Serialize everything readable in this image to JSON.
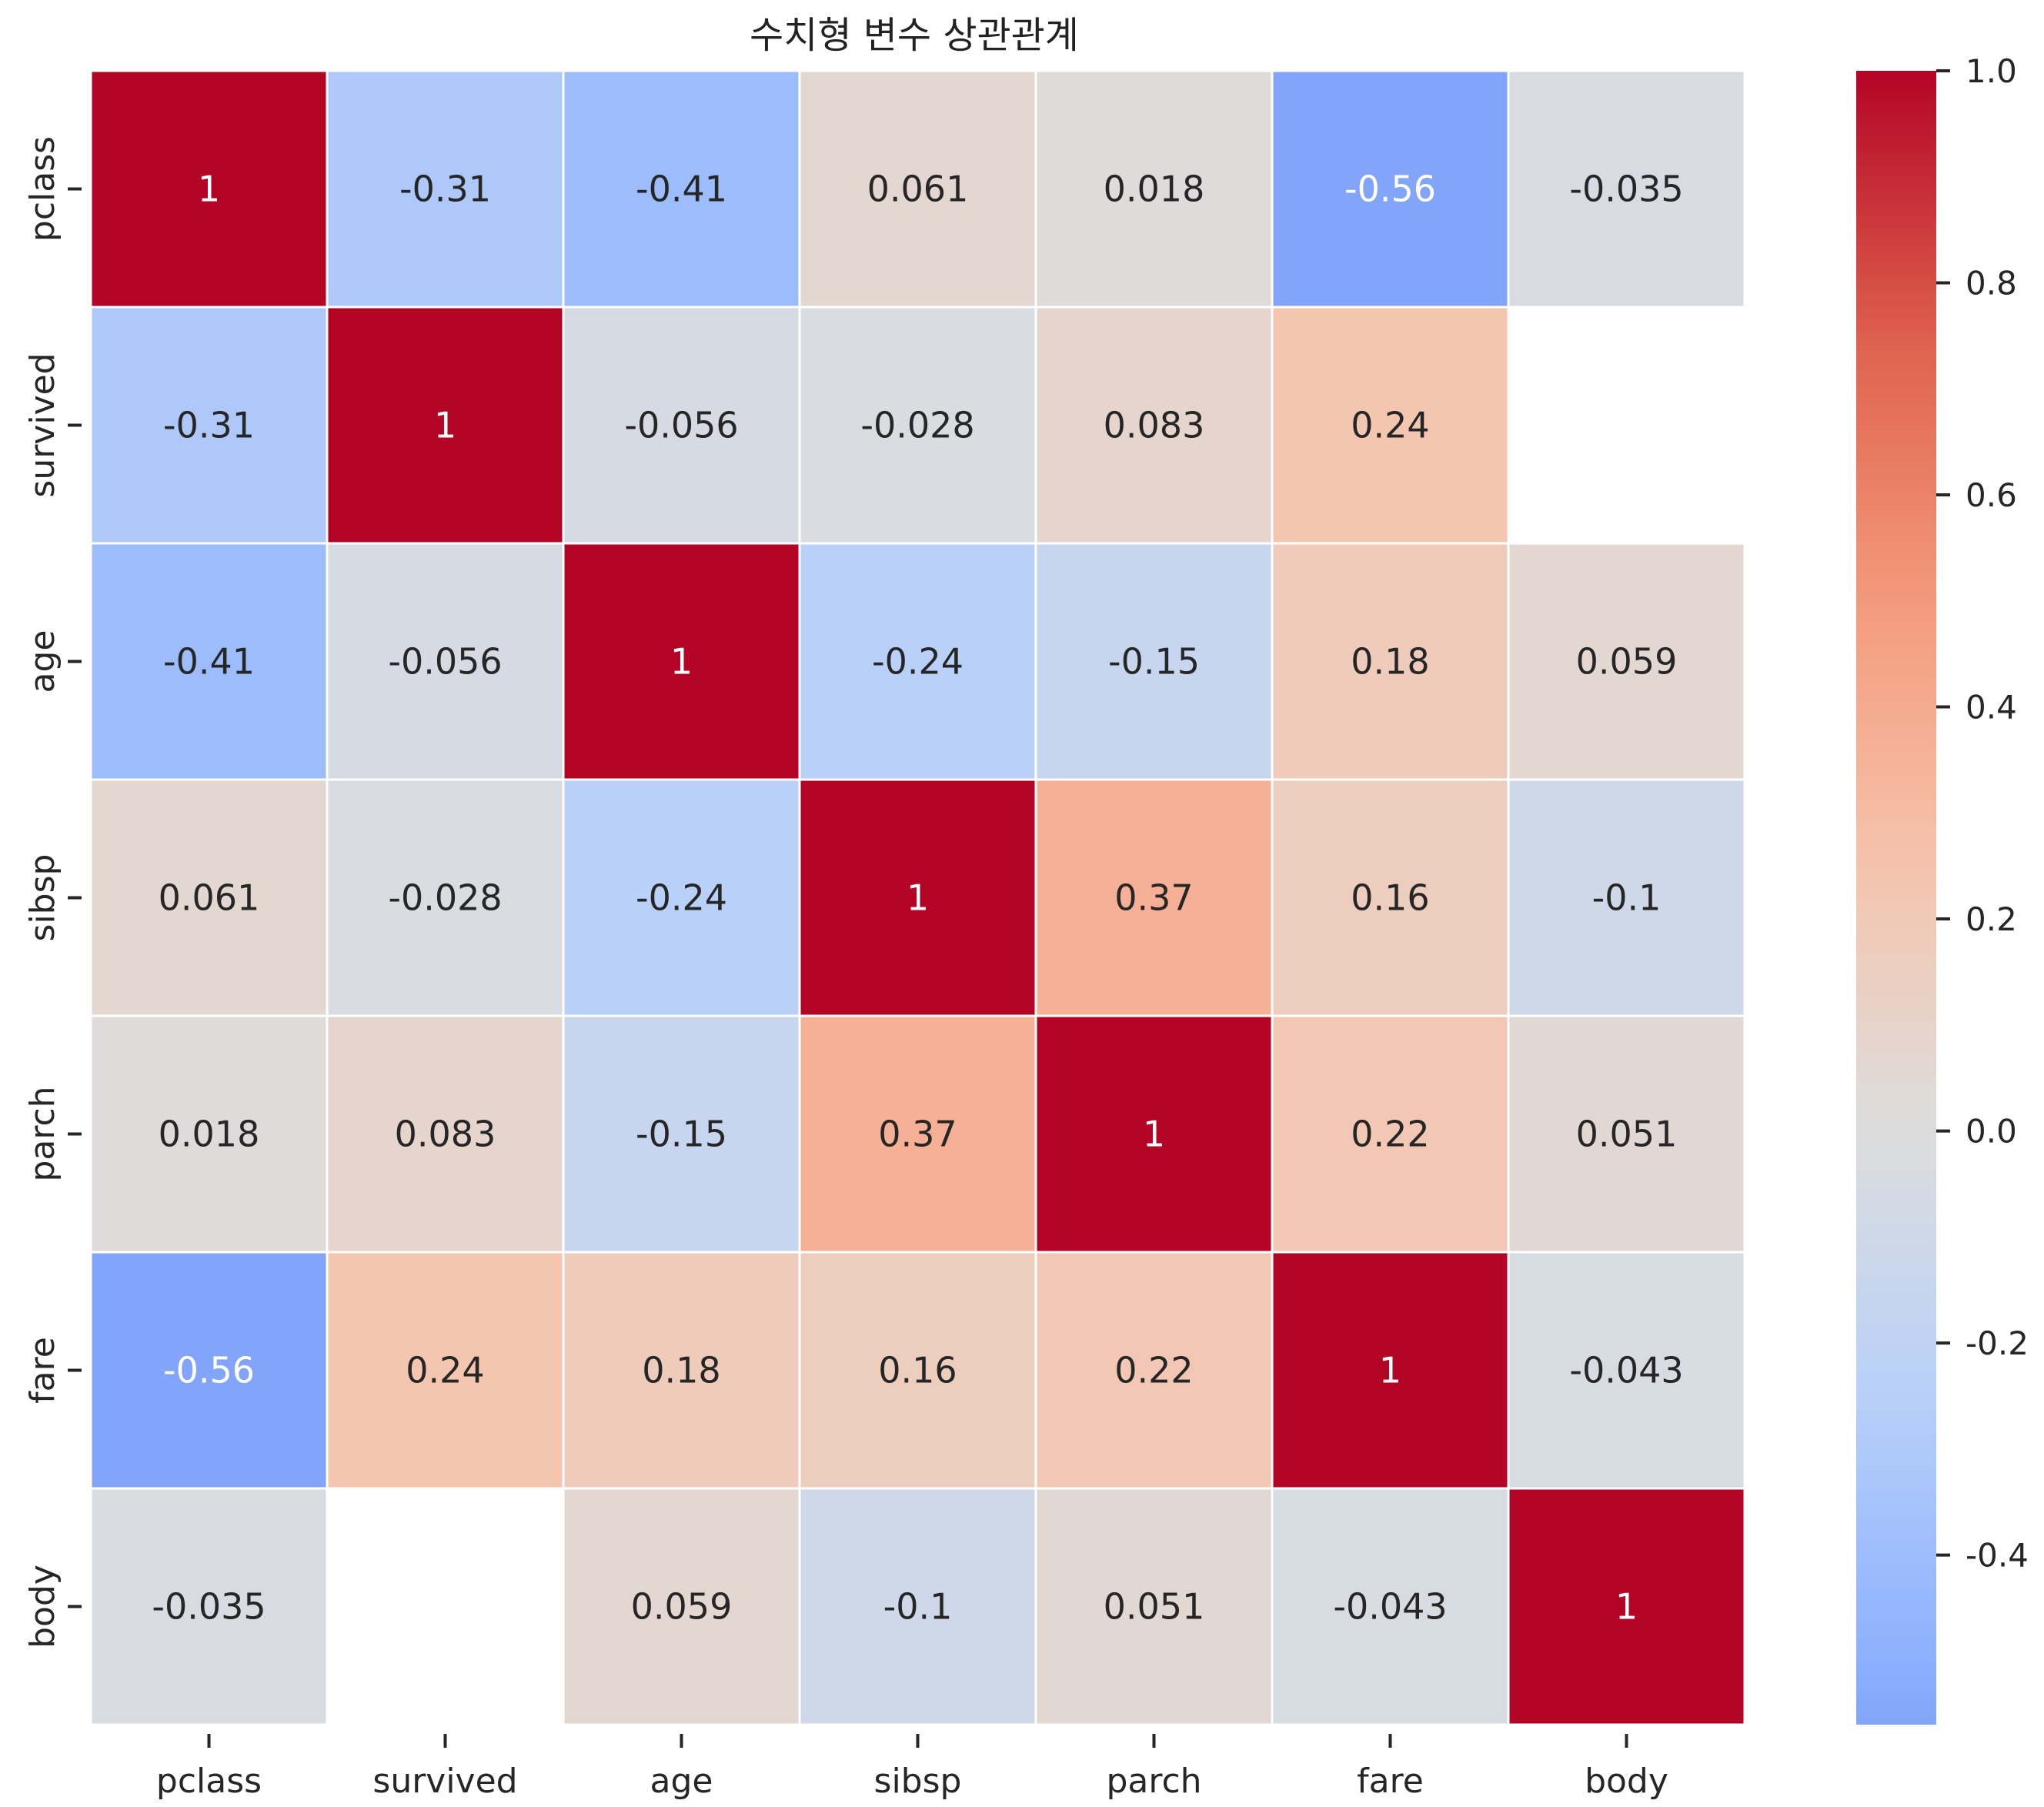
{
  "chart_data": {
    "type": "heatmap",
    "title": "수치형 변수 상관관계",
    "xlabel": "",
    "ylabel": "",
    "x_labels": [
      "pclass",
      "survived",
      "age",
      "sibsp",
      "parch",
      "fare",
      "body"
    ],
    "y_labels": [
      "pclass",
      "survived",
      "age",
      "sibsp",
      "parch",
      "fare",
      "body"
    ],
    "values": [
      [
        1,
        -0.31,
        -0.41,
        0.061,
        0.018,
        -0.56,
        -0.035
      ],
      [
        -0.31,
        1,
        -0.056,
        -0.028,
        0.083,
        0.24,
        null
      ],
      [
        -0.41,
        -0.056,
        1,
        -0.24,
        -0.15,
        0.18,
        0.059
      ],
      [
        0.061,
        -0.028,
        -0.24,
        1,
        0.37,
        0.16,
        -0.1
      ],
      [
        0.018,
        0.083,
        -0.15,
        0.37,
        1,
        0.22,
        0.051
      ],
      [
        -0.56,
        0.24,
        0.18,
        0.16,
        0.22,
        1,
        -0.043
      ],
      [
        -0.035,
        null,
        0.059,
        -0.1,
        0.051,
        -0.043,
        1
      ]
    ],
    "annotations": [
      [
        "1",
        "-0.31",
        "-0.41",
        "0.061",
        "0.018",
        "-0.56",
        "-0.035"
      ],
      [
        "-0.31",
        "1",
        "-0.056",
        "-0.028",
        "0.083",
        "0.24",
        ""
      ],
      [
        "-0.41",
        "-0.056",
        "1",
        "-0.24",
        "-0.15",
        "0.18",
        "0.059"
      ],
      [
        "0.061",
        "-0.028",
        "-0.24",
        "1",
        "0.37",
        "0.16",
        "-0.1"
      ],
      [
        "0.018",
        "0.083",
        "-0.15",
        "0.37",
        "1",
        "0.22",
        "0.051"
      ],
      [
        "-0.56",
        "0.24",
        "0.18",
        "0.16",
        "0.22",
        "1",
        "-0.043"
      ],
      [
        "-0.035",
        "",
        "0.059",
        "-0.1",
        "0.051",
        "-0.043",
        "1"
      ]
    ],
    "colormap": "coolwarm",
    "color_range": [
      -0.56,
      1.0
    ],
    "center": 0,
    "colorbar_ticks": [
      "-0.4",
      "-0.2",
      "0.0",
      "0.2",
      "0.4",
      "0.6",
      "0.8",
      "1.0"
    ],
    "colorbar_tick_values": [
      -0.4,
      -0.2,
      0.0,
      0.2,
      0.4,
      0.6,
      0.8,
      1.0
    ],
    "grid": false,
    "cell_border_color": "#ffffff",
    "missing_color": "#ffffff"
  }
}
